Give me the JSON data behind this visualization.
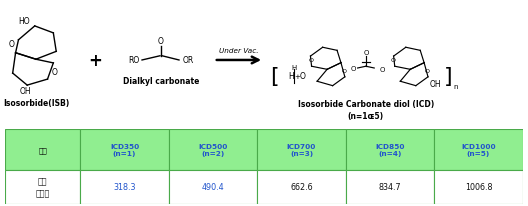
{
  "reaction_condition": "Under Vac.",
  "label_isb": "Isosorbide(ISB)",
  "label_dialkyl": "Dialkyl carbonate",
  "label_icd_line1": "Isosorbide Carbonate diol (ICD)",
  "label_icd_line2": "(n=1ɶ5)",
  "table_header_bg": "#90EE90",
  "table_header_text_color": "#2255CC",
  "table_row_bg": "#FFFFFF",
  "table_border_color": "#4aaa4a",
  "col_header": "품명",
  "columns": [
    "ICD350\n(n=1)",
    "ICD500\n(n=2)",
    "ICD700\n(n=3)",
    "ICD850\n(n=4)",
    "ICD1000\n(n=5)"
  ],
  "row_label": "이론\n분자량",
  "values": [
    "318.3",
    "490.4",
    "662.6",
    "834.7",
    "1006.8"
  ],
  "value_colors": [
    "#2255CC",
    "#2255CC",
    "#111111",
    "#111111",
    "#111111"
  ],
  "bg_color": "#FFFFFF",
  "col_header_color": "#000000"
}
